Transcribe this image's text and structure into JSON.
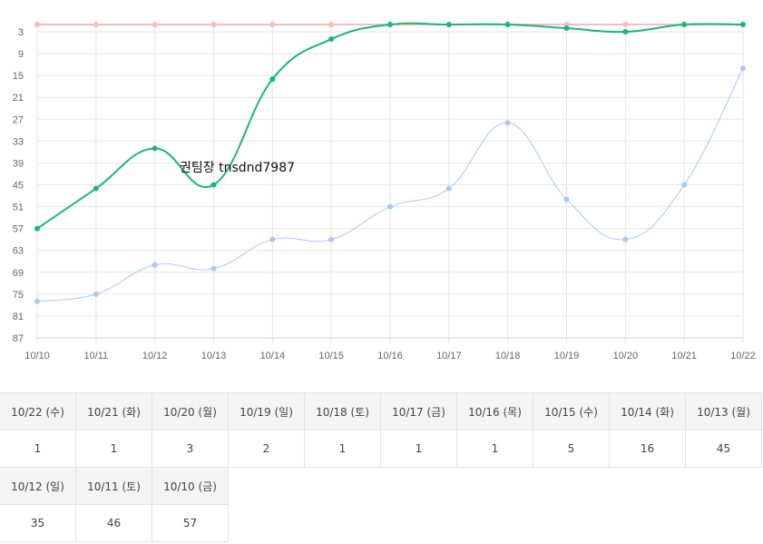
{
  "chart_data": {
    "type": "line",
    "categories": [
      "10/10",
      "10/11",
      "10/12",
      "10/13",
      "10/14",
      "10/15",
      "10/16",
      "10/17",
      "10/18",
      "10/19",
      "10/20",
      "10/21",
      "10/22"
    ],
    "y_inverted": true,
    "ylim": [
      1,
      87
    ],
    "yticks": [
      3,
      9,
      15,
      21,
      27,
      33,
      39,
      45,
      51,
      57,
      63,
      69,
      75,
      81,
      87
    ],
    "grid": true,
    "annotation": "권팀장 tnsdnd7987",
    "series": [
      {
        "color": "#fdb9bf",
        "values": [
          1,
          1,
          1,
          1,
          1,
          1,
          1,
          1,
          1,
          1,
          1,
          1,
          1
        ]
      },
      {
        "color": "#a9c8f5",
        "values": [
          77,
          75,
          67,
          68,
          60,
          60,
          51,
          46,
          28,
          49,
          60,
          45,
          13
        ]
      },
      {
        "color": "#17b978",
        "values": [
          57,
          46,
          35,
          45,
          16,
          5,
          1,
          1,
          1,
          2,
          3,
          1,
          1
        ]
      }
    ]
  },
  "table": {
    "row1": {
      "headers": [
        "10/22 (수)",
        "10/21 (화)",
        "10/20 (월)",
        "10/19 (일)",
        "10/18 (토)",
        "10/17 (금)",
        "10/16 (목)",
        "10/15 (수)",
        "10/14 (화)",
        "10/13 (월)"
      ],
      "values": [
        "1",
        "1",
        "3",
        "2",
        "1",
        "1",
        "1",
        "5",
        "16",
        "45"
      ]
    },
    "row2": {
      "headers": [
        "10/12 (일)",
        "10/11 (토)",
        "10/10 (금)"
      ],
      "values": [
        "35",
        "46",
        "57"
      ]
    }
  }
}
